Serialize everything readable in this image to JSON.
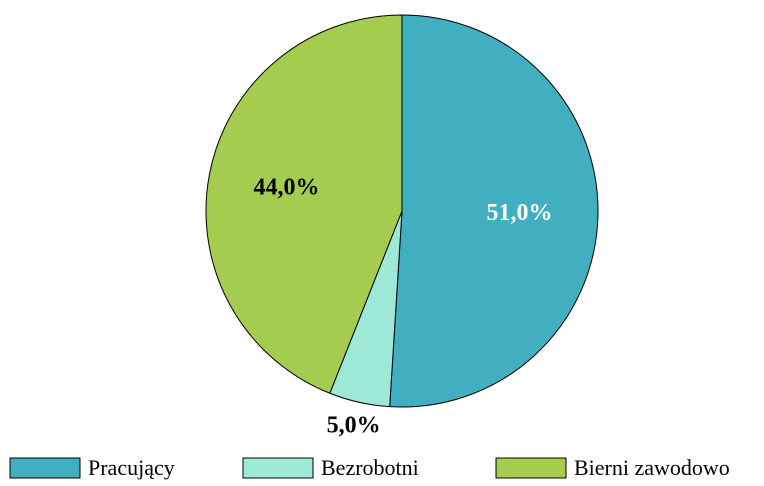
{
  "chart_data": {
    "type": "pie",
    "categories": [
      "Pracujący",
      "Bezrobotni",
      "Bierni zawodowo"
    ],
    "values": [
      51,
      5,
      44
    ],
    "value_labels": [
      "51,0%",
      "5,0%",
      "44,0%"
    ],
    "colors": [
      "#41afc0",
      "#9ee8d8",
      "#a4cd50"
    ],
    "label_colors": [
      "#ffffff",
      "#000000",
      "#000000"
    ],
    "legend": "bottom"
  }
}
